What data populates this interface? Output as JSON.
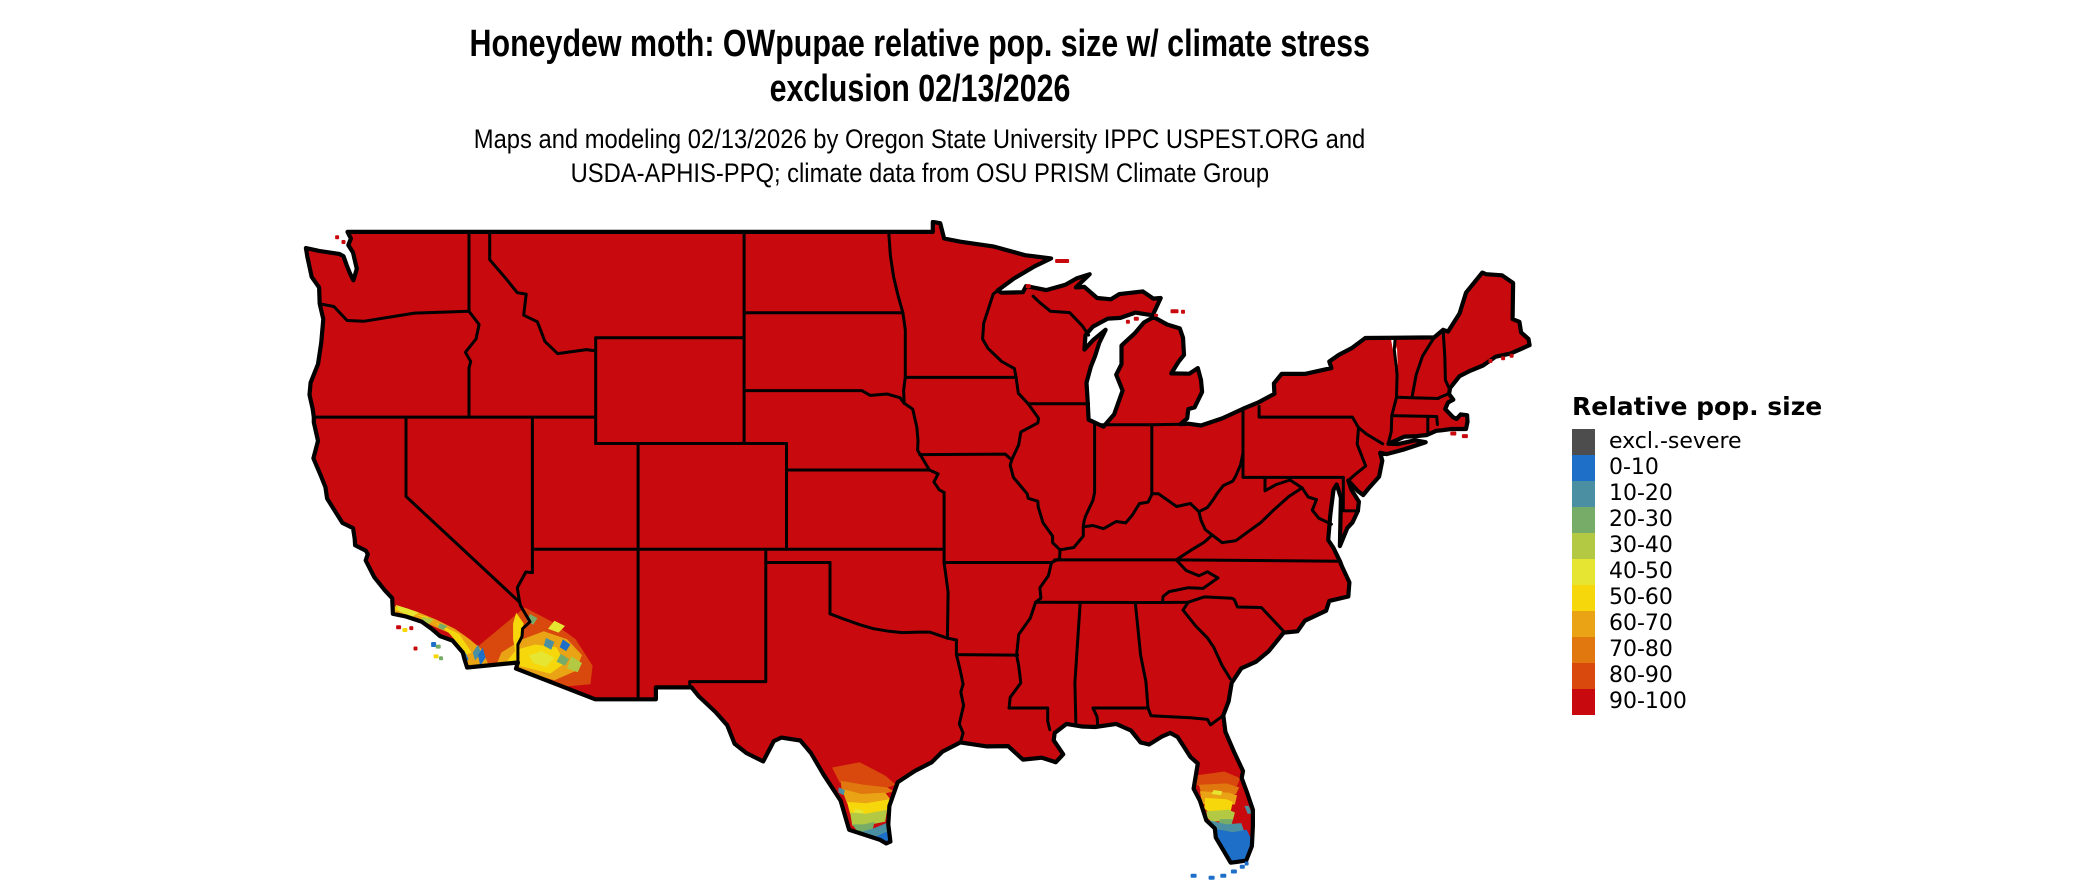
{
  "title": {
    "line1": "Honeydew moth: OWpupae relative pop. size w/ climate stress",
    "line2": "exclusion 02/13/2026"
  },
  "subtitle": {
    "line1": "Maps and modeling 02/13/2026 by Oregon State University IPPC USPEST.ORG and",
    "line2": "USDA-APHIS-PPQ; climate data from OSU PRISM Climate Group"
  },
  "legend": {
    "title": "Relative pop. size",
    "items": [
      {
        "label": "excl.-severe",
        "color": "#4D4D4D"
      },
      {
        "label": "0-10",
        "color": "#1D6FC8"
      },
      {
        "label": "10-20",
        "color": "#4B90A2"
      },
      {
        "label": "20-30",
        "color": "#77AC68"
      },
      {
        "label": "30-40",
        "color": "#B3C944"
      },
      {
        "label": "40-50",
        "color": "#E6E532"
      },
      {
        "label": "50-60",
        "color": "#F6D70B"
      },
      {
        "label": "60-70",
        "color": "#EAA315"
      },
      {
        "label": "70-80",
        "color": "#E0770F"
      },
      {
        "label": "80-90",
        "color": "#D9480D"
      },
      {
        "label": "90-100",
        "color": "#C80A0E"
      }
    ]
  },
  "map": {
    "dominant_class": "90-100",
    "land_fill": "#C80A0E",
    "border_color": "#000000",
    "background": "#FFFFFF"
  }
}
